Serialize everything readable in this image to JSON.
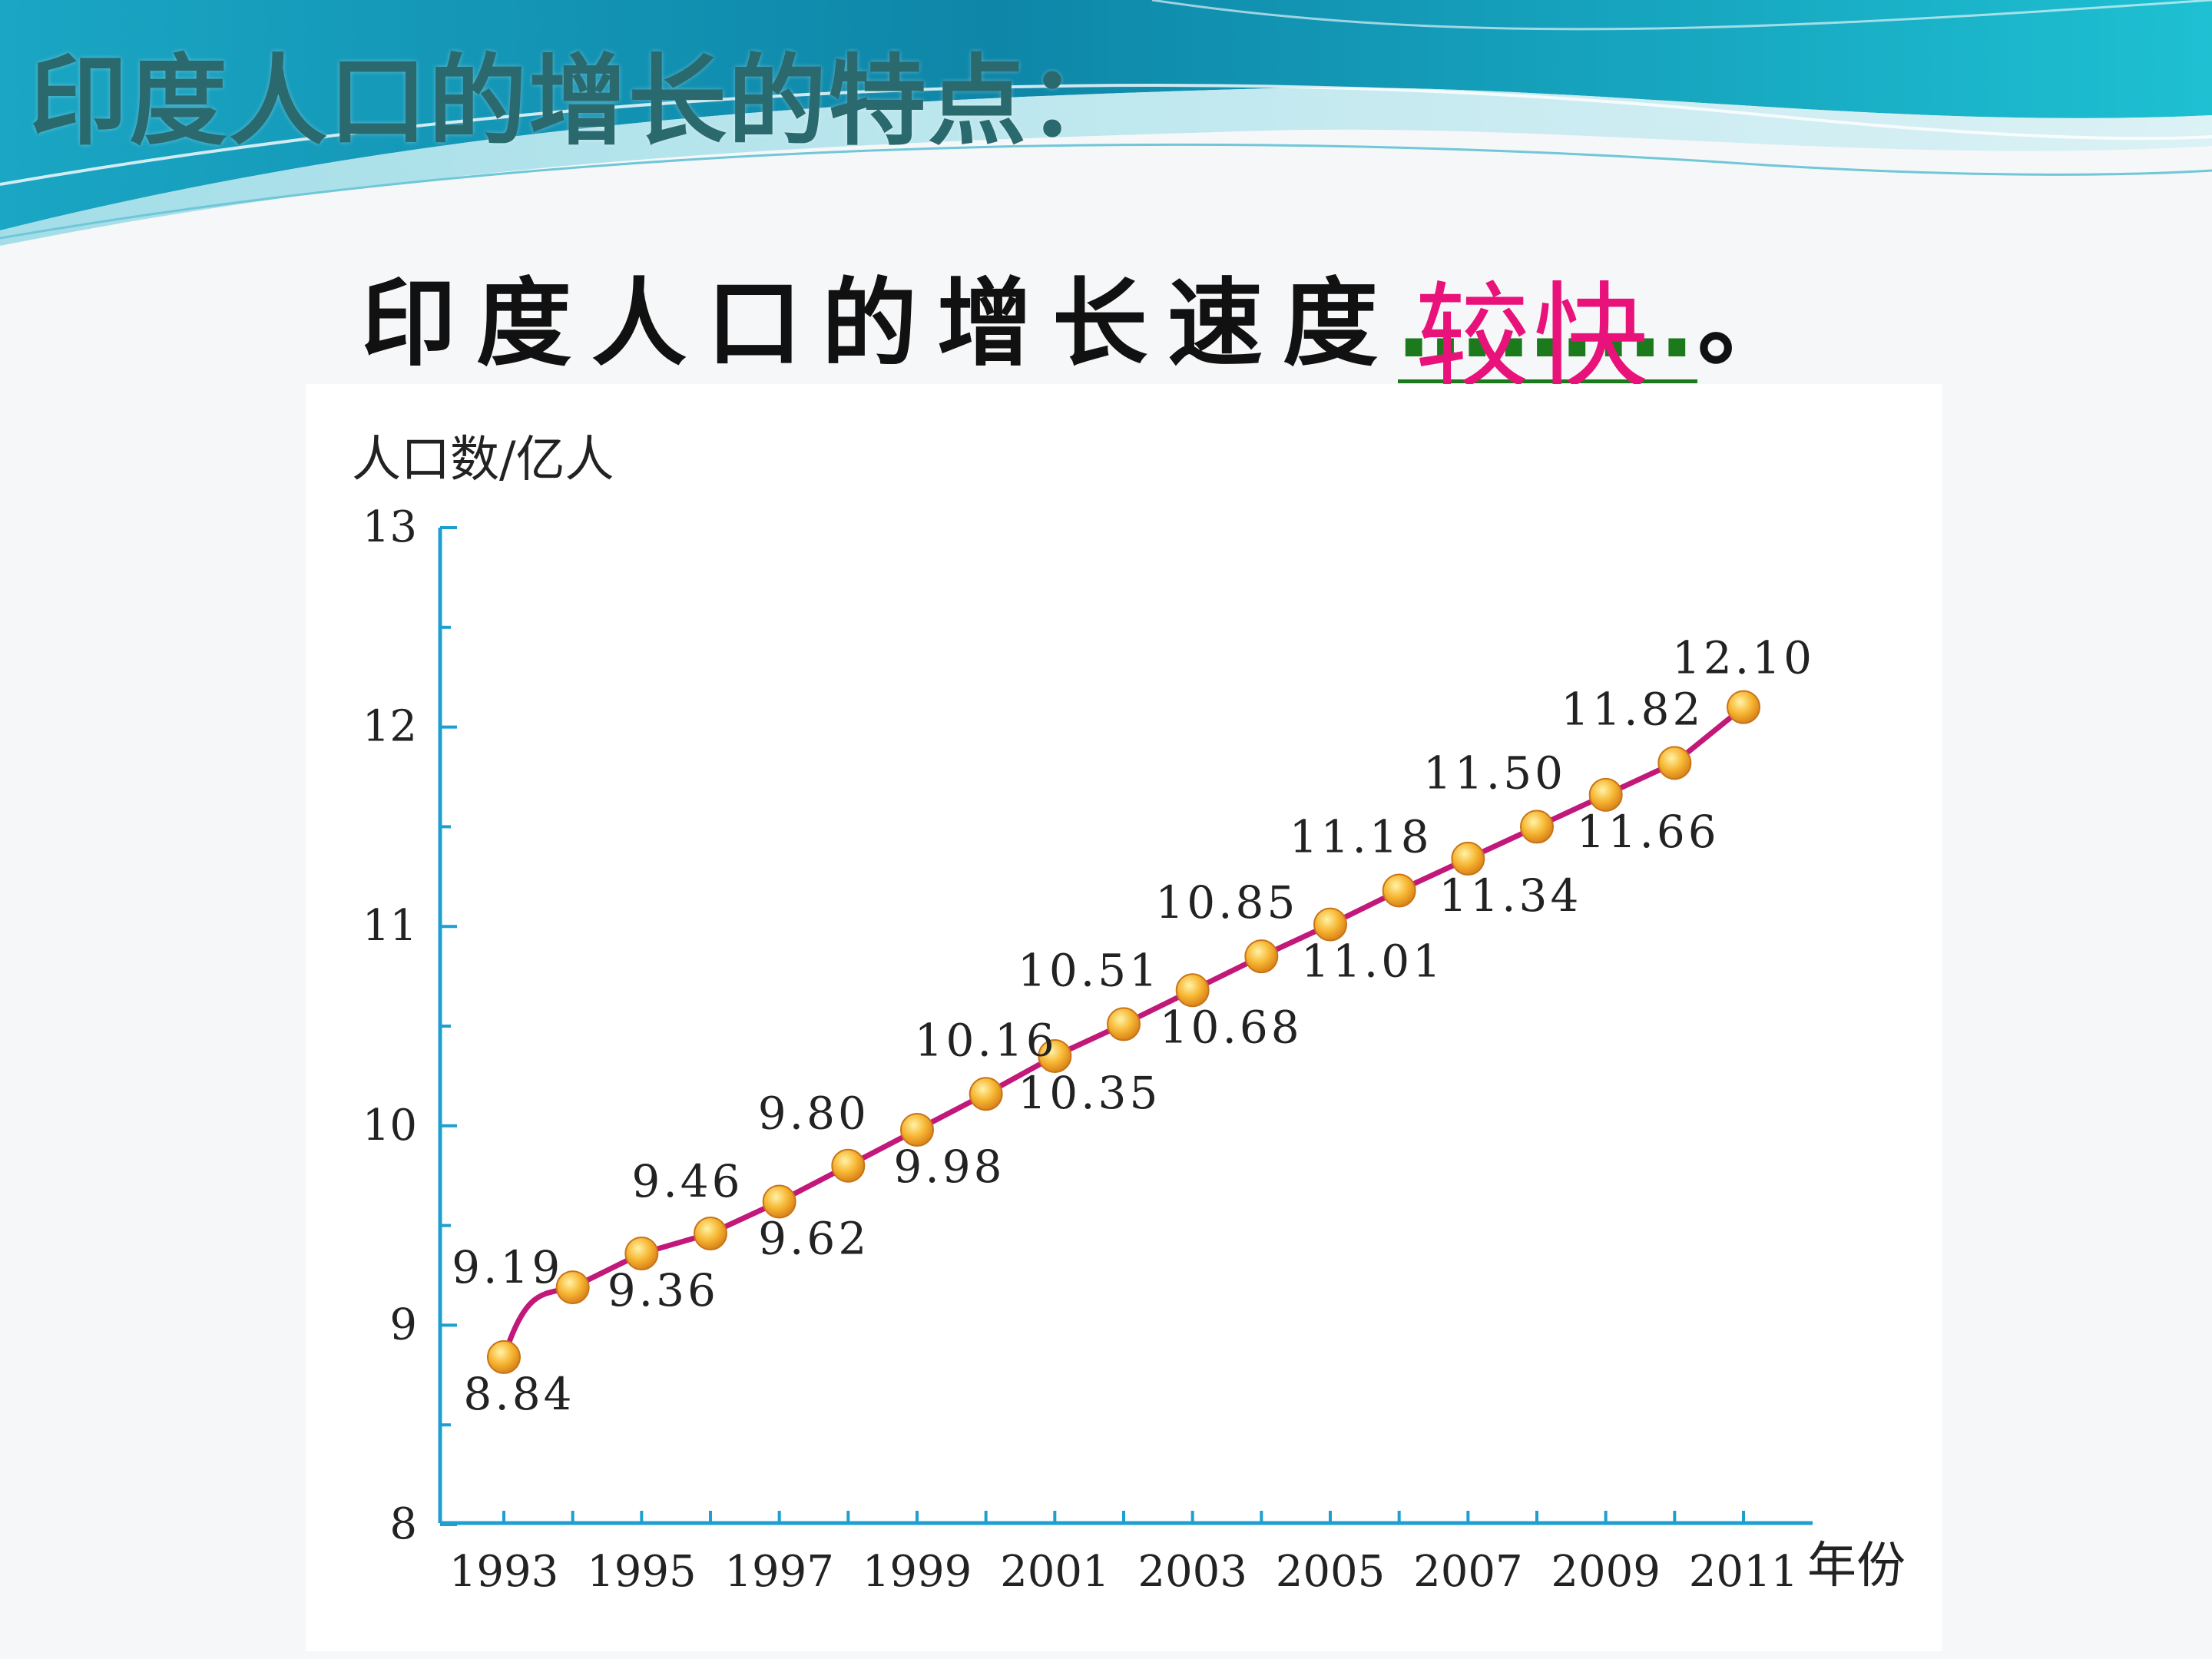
{
  "slide": {
    "title": "印度人口的增长的特点：",
    "statement_prefix": "印度人口的增长速度",
    "statement_blank": "………",
    "statement_answer": "较快",
    "statement_suffix": "。",
    "answer_color": "#e8127a",
    "blank_color": "#1c7a1c",
    "banner_colors": [
      "#0e86a8",
      "#21b3cc",
      "#8fd6e0"
    ]
  },
  "chart_data": {
    "type": "line",
    "ylabel": "人口数/亿人",
    "xlabel": "年份",
    "xlim": [
      1993,
      2011
    ],
    "ylim": [
      8,
      13
    ],
    "yticks": [
      "8",
      "9",
      "10",
      "11",
      "12",
      "13"
    ],
    "xtick_labels": [
      "1993",
      "1995",
      "1997",
      "1999",
      "2001",
      "2003",
      "2005",
      "2007",
      "2009",
      "2011"
    ],
    "grid": false,
    "line_color": "#c2187a",
    "marker_color": "#f5a623",
    "axis_color": "#1f9fd0",
    "series": [
      {
        "x": [
          1993,
          1994,
          1995,
          1996,
          1997,
          1998,
          1999,
          2000,
          2001,
          2002,
          2003,
          2004,
          2005,
          2006,
          2007,
          2008,
          2009,
          2010,
          2011
        ],
        "values": [
          8.84,
          9.19,
          9.36,
          9.46,
          9.62,
          9.8,
          9.98,
          10.16,
          10.35,
          10.51,
          10.68,
          10.85,
          11.01,
          11.18,
          11.34,
          11.5,
          11.66,
          11.82,
          12.1
        ],
        "labels": [
          "8.84",
          "9.19",
          "9.36",
          "9.46",
          "9.62",
          "9.80",
          "9.98",
          "10.16",
          "10.35",
          "10.51",
          "10.68",
          "10.85",
          "11.01",
          "11.18",
          "11.34",
          "11.50",
          "11.66",
          "11.82",
          "12.10"
        ]
      }
    ]
  }
}
